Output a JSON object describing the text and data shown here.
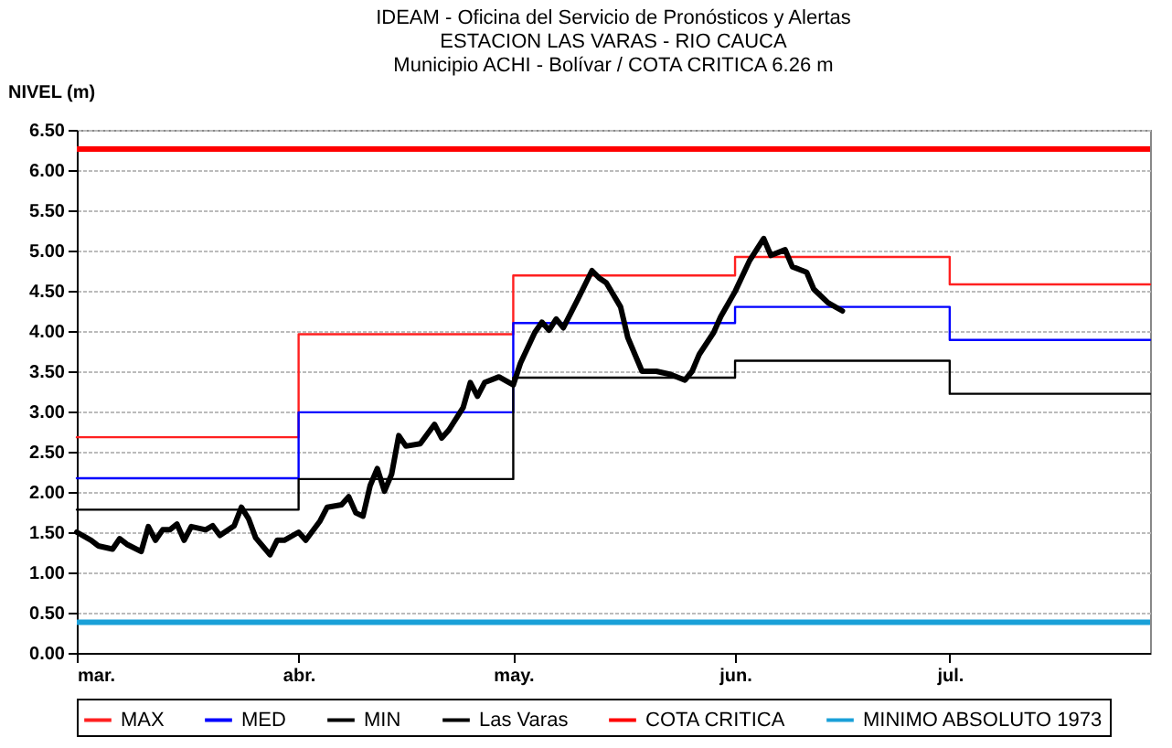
{
  "chart_data": {
    "type": "line",
    "title": "IDEAM - Oficina del Servicio de Pronósticos y Alertas\nESTACION LAS VARAS - RIO CAUCA\nMunicipio ACHI - Bolívar / COTA CRITICA 6.26 m",
    "ylabel": "NIVEL (m)",
    "xlim": [
      "--03-01",
      "--07-29"
    ],
    "xticks": [
      {
        "value": "--03-01",
        "label": "mar."
      },
      {
        "value": "--04-01",
        "label": "abr."
      },
      {
        "value": "--05-01",
        "label": "may."
      },
      {
        "value": "--06-01",
        "label": "jun."
      },
      {
        "value": "--07-01",
        "label": "jul."
      }
    ],
    "ylim": [
      0,
      6.5
    ],
    "yticks": [
      {
        "value": 0,
        "label": "0.00"
      },
      {
        "value": 0.5,
        "label": "0.50"
      },
      {
        "value": 1,
        "label": "1.00"
      },
      {
        "value": 1.5,
        "label": "1.50"
      },
      {
        "value": 2,
        "label": "2.00"
      },
      {
        "value": 2.5,
        "label": "2.50"
      },
      {
        "value": 3,
        "label": "3.00"
      },
      {
        "value": 3.5,
        "label": "3.50"
      },
      {
        "value": 4,
        "label": "4.00"
      },
      {
        "value": 4.5,
        "label": "4.50"
      },
      {
        "value": 5,
        "label": "5.00"
      },
      {
        "value": 5.5,
        "label": "5.50"
      },
      {
        "value": 6,
        "label": "6.00"
      },
      {
        "value": 6.5,
        "label": "6.50"
      }
    ],
    "grid": "y",
    "legend": "bottom",
    "series": [
      {
        "name": "MAX",
        "type": "step",
        "color": "#ff2020",
        "x": [
          "--03-01",
          "--04-01",
          "--05-01",
          "--06-01",
          "--07-01",
          "--07-29"
        ],
        "values": [
          2.68,
          3.96,
          4.69,
          4.92,
          4.58,
          4.58
        ]
      },
      {
        "name": "MED",
        "type": "step",
        "color": "#0000ff",
        "x": [
          "--03-01",
          "--04-01",
          "--05-01",
          "--06-01",
          "--07-01",
          "--07-29"
        ],
        "values": [
          2.17,
          2.99,
          4.1,
          4.3,
          3.89,
          3.89
        ]
      },
      {
        "name": "MIN",
        "type": "step",
        "color": "#000000",
        "x": [
          "--03-01",
          "--04-01",
          "--05-01",
          "--06-01",
          "--07-01",
          "--07-29"
        ],
        "values": [
          1.78,
          2.16,
          3.42,
          3.63,
          3.22,
          3.22
        ]
      },
      {
        "name": "Las Varas",
        "type": "line",
        "color": "#000000",
        "x": [
          "--03-01",
          "--03-03",
          "--03-04",
          "--03-06",
          "--03-07",
          "--03-08",
          "--03-10",
          "--03-11",
          "--03-12",
          "--03-13",
          "--03-14",
          "--03-15",
          "--03-16",
          "--03-17",
          "--03-19",
          "--03-20",
          "--03-21",
          "--03-23",
          "--03-24",
          "--03-25",
          "--03-26",
          "--03-28",
          "--03-29",
          "--03-30",
          "--04-01",
          "--04-02",
          "--04-04",
          "--04-05",
          "--04-07",
          "--04-08",
          "--04-09",
          "--04-10",
          "--04-11",
          "--04-12",
          "--04-13",
          "--04-14",
          "--04-15",
          "--04-16",
          "--04-18",
          "--04-20",
          "--04-21",
          "--04-22",
          "--04-24",
          "--04-25",
          "--04-26",
          "--04-27",
          "--04-29",
          "--05-01",
          "--05-02",
          "--05-04",
          "--05-05",
          "--05-06",
          "--05-07",
          "--05-08",
          "--05-10",
          "--05-12",
          "--05-13",
          "--05-14",
          "--05-16",
          "--05-17",
          "--05-18",
          "--05-19",
          "--05-21",
          "--05-23",
          "--05-25",
          "--05-26",
          "--05-27",
          "--05-29",
          "--05-30",
          "--06-01",
          "--06-03",
          "--06-05",
          "--06-06",
          "--06-08",
          "--06-09",
          "--06-11",
          "--06-12",
          "--06-14",
          "--06-16"
        ],
        "values": [
          1.5,
          1.4,
          1.33,
          1.29,
          1.42,
          1.35,
          1.26,
          1.57,
          1.4,
          1.53,
          1.53,
          1.6,
          1.4,
          1.57,
          1.53,
          1.58,
          1.46,
          1.58,
          1.81,
          1.67,
          1.43,
          1.22,
          1.4,
          1.4,
          1.5,
          1.4,
          1.64,
          1.81,
          1.84,
          1.94,
          1.74,
          1.7,
          2.08,
          2.29,
          2.01,
          2.22,
          2.7,
          2.57,
          2.6,
          2.84,
          2.67,
          2.77,
          3.05,
          3.36,
          3.19,
          3.36,
          3.43,
          3.33,
          3.6,
          3.98,
          4.11,
          4.01,
          4.15,
          4.04,
          4.39,
          4.75,
          4.66,
          4.6,
          4.3,
          3.92,
          3.71,
          3.5,
          3.5,
          3.46,
          3.39,
          3.5,
          3.71,
          3.98,
          4.18,
          4.49,
          4.87,
          5.15,
          4.94,
          5.01,
          4.8,
          4.73,
          4.52,
          4.35,
          4.25
        ]
      }
    ],
    "ref_lines": [
      {
        "axis": "y",
        "value": 6.26,
        "label": "COTA CRITICA",
        "color": "#ff0000"
      },
      {
        "axis": "y",
        "value": 0.38,
        "label": "MINIMO ABSOLUTO 1973",
        "color": "#1aa0d8"
      }
    ]
  }
}
